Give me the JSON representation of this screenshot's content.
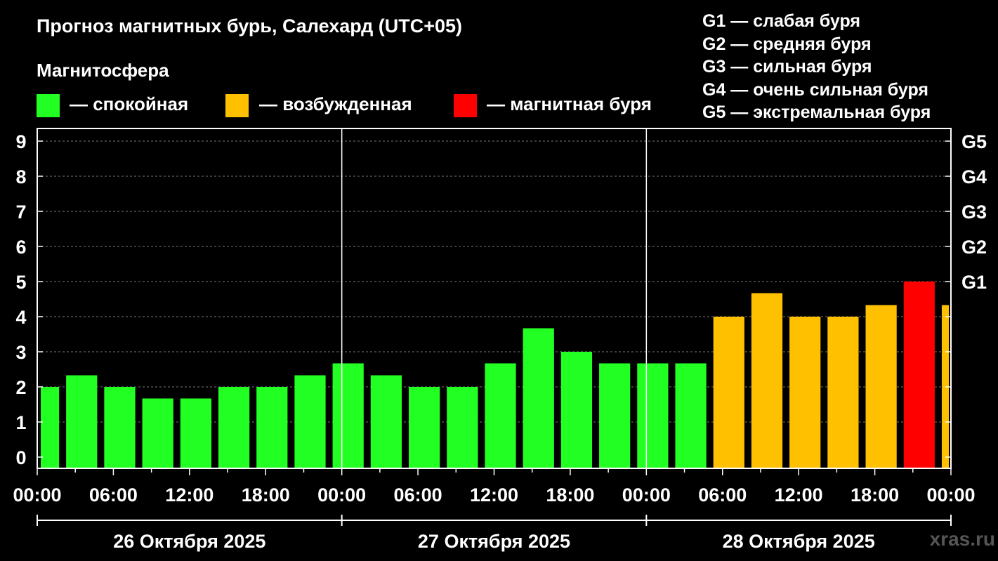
{
  "title": "Прогноз магнитных бурь, Салехард (UTC+05)",
  "subtitle": "Магнитосфера",
  "legend": [
    {
      "color": "#22ff22",
      "label": "— спокойная"
    },
    {
      "color": "#ffc000",
      "label": "— возбужденная"
    },
    {
      "color": "#ff0000",
      "label": "— магнитная буря"
    }
  ],
  "g_scale": [
    "G1 — слабая буря",
    "G2 — средняя буря",
    "G3 — сильная буря",
    "G4 — очень сильная буря",
    "G5 — экстремальная буря"
  ],
  "watermark": "xras.ru",
  "colors": {
    "quiet": "#22ff22",
    "active": "#ffc000",
    "storm": "#ff0000"
  },
  "chart_data": {
    "type": "bar",
    "title": "Прогноз магнитных бурь, Салехард (UTC+05)",
    "ylim": [
      0,
      9
    ],
    "yticks": [
      "0",
      "1",
      "2",
      "3",
      "4",
      "5",
      "6",
      "7",
      "8",
      "9"
    ],
    "right_ticks": [
      {
        "value": 5,
        "label": "G1"
      },
      {
        "value": 6,
        "label": "G2"
      },
      {
        "value": 7,
        "label": "G3"
      },
      {
        "value": 8,
        "label": "G4"
      },
      {
        "value": 9,
        "label": "G5"
      }
    ],
    "xlim_hours": [
      0,
      72
    ],
    "xtick_labels": [
      "00:00",
      "06:00",
      "12:00",
      "18:00",
      "00:00",
      "06:00",
      "12:00",
      "18:00",
      "00:00",
      "06:00",
      "12:00",
      "18:00",
      "00:00"
    ],
    "days": [
      "26 Октября 2025",
      "27 Октября 2025",
      "28 Октября 2025"
    ],
    "grid": true,
    "series": [
      {
        "start_hours": [
          0,
          2,
          5,
          8,
          11,
          14,
          17,
          20,
          23,
          26,
          29,
          32,
          35,
          38,
          41,
          44,
          47,
          50,
          53,
          56,
          59,
          62,
          65,
          68,
          71
        ],
        "values": [
          2.0,
          2.33,
          2.0,
          1.67,
          1.67,
          2.0,
          2.0,
          2.33,
          2.67,
          2.33,
          2.0,
          2.0,
          2.67,
          3.67,
          3.0,
          2.67,
          2.67,
          2.67,
          4.0,
          4.67,
          4.0,
          4.0,
          4.33,
          5.0,
          4.33
        ],
        "levels": [
          "quiet",
          "quiet",
          "quiet",
          "quiet",
          "quiet",
          "quiet",
          "quiet",
          "quiet",
          "quiet",
          "quiet",
          "quiet",
          "quiet",
          "quiet",
          "quiet",
          "quiet",
          "quiet",
          "quiet",
          "quiet",
          "active",
          "active",
          "active",
          "active",
          "active",
          "storm",
          "active"
        ]
      }
    ]
  }
}
